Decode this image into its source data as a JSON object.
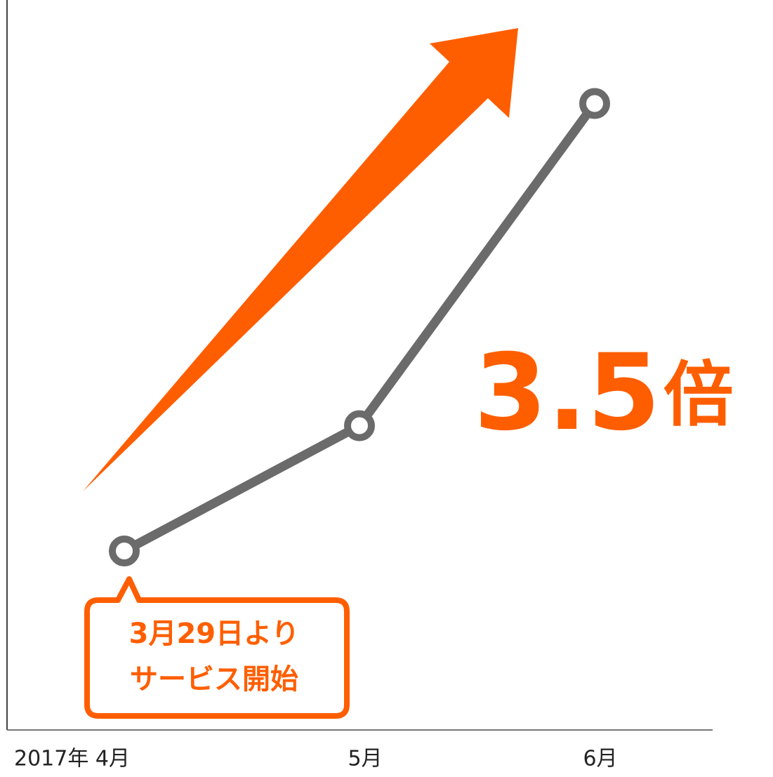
{
  "chart_data": {
    "type": "line",
    "categories": [
      "2017年 4月",
      "5月",
      "6月"
    ],
    "series": [
      {
        "color": "#6b6b6b",
        "values": [
          1,
          1.7,
          3.5
        ]
      }
    ],
    "ylim": [
      0,
      4
    ],
    "annotation": {
      "number": "3.5",
      "suffix": "倍",
      "color": "#ff5e00"
    },
    "callout": [
      "3月29日より",
      "サービス開始"
    ]
  }
}
